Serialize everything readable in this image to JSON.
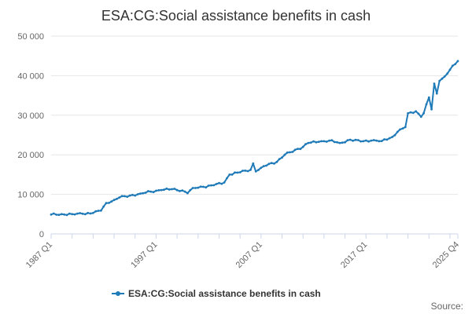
{
  "chart_data": {
    "type": "line",
    "title": "ESA:CG:Social assistance benefits in cash",
    "xlabel": "",
    "ylabel": "",
    "ylim": [
      0,
      50000
    ],
    "y_ticks": [
      0,
      10000,
      20000,
      30000,
      40000,
      50000
    ],
    "y_tick_labels": [
      "0",
      "10 000",
      "20 000",
      "30 000",
      "40 000",
      "50 000"
    ],
    "x_range": [
      "1987 Q1",
      "2025 Q4"
    ],
    "x_tick_labels": [
      "1987 Q1",
      "1997 Q1",
      "2007 Q1",
      "2017 Q1",
      "2025 Q4"
    ],
    "grid": true,
    "legend_position": "bottom-center",
    "color": "#1f7ab8",
    "series": [
      {
        "name": "ESA:CG:Social assistance benefits in cash",
        "anchors": [
          [
            "1987 Q1",
            4900
          ],
          [
            "1988 Q1",
            5000
          ],
          [
            "1989 Q1",
            5000
          ],
          [
            "1990 Q1",
            5100
          ],
          [
            "1991 Q1",
            5300
          ],
          [
            "1991 Q4",
            5900
          ],
          [
            "1992 Q2",
            7800
          ],
          [
            "1993 Q1",
            8600
          ],
          [
            "1993 Q3",
            9200
          ],
          [
            "1994 Q3",
            9700
          ],
          [
            "1995 Q3",
            10200
          ],
          [
            "1996 Q3",
            10700
          ],
          [
            "1997 Q3",
            11100
          ],
          [
            "1998 Q3",
            11300
          ],
          [
            "1999 Q3",
            11000
          ],
          [
            "2000 Q1",
            10300
          ],
          [
            "2000 Q3",
            11600
          ],
          [
            "2001 Q3",
            11900
          ],
          [
            "2002 Q3",
            12300
          ],
          [
            "2003 Q3",
            13000
          ],
          [
            "2004 Q1",
            15000
          ],
          [
            "2004 Q4",
            15500
          ],
          [
            "2005 Q3",
            16000
          ],
          [
            "2006 Q1",
            16200
          ],
          [
            "2006 Q2",
            17800
          ],
          [
            "2006 Q3",
            15800
          ],
          [
            "2007 Q1",
            16700
          ],
          [
            "2007 Q4",
            17700
          ],
          [
            "2008 Q3",
            18200
          ],
          [
            "2009 Q2",
            20000
          ],
          [
            "2010 Q3",
            21500
          ],
          [
            "2011 Q1",
            22000
          ],
          [
            "2011 Q3",
            23000
          ],
          [
            "2012 Q3",
            23300
          ],
          [
            "2013 Q3",
            23600
          ],
          [
            "2014 Q3",
            23000
          ],
          [
            "2015 Q3",
            23800
          ],
          [
            "2016 Q3",
            23400
          ],
          [
            "2017 Q3",
            23600
          ],
          [
            "2018 Q3",
            23500
          ],
          [
            "2019 Q3",
            24500
          ],
          [
            "2020 Q1",
            25800
          ],
          [
            "2020 Q4",
            27000
          ],
          [
            "2021 Q1",
            30500
          ],
          [
            "2021 Q4",
            31000
          ],
          [
            "2022 Q2",
            29600
          ],
          [
            "2022 Q3",
            30500
          ],
          [
            "2023 Q1",
            34500
          ],
          [
            "2023 Q2",
            31500
          ],
          [
            "2023 Q3",
            38000
          ],
          [
            "2023 Q4",
            35500
          ],
          [
            "2024 Q1",
            38700
          ],
          [
            "2024 Q3",
            39800
          ],
          [
            "2025 Q1",
            41500
          ],
          [
            "2025 Q4",
            43700
          ]
        ]
      }
    ],
    "source": "Source:"
  }
}
